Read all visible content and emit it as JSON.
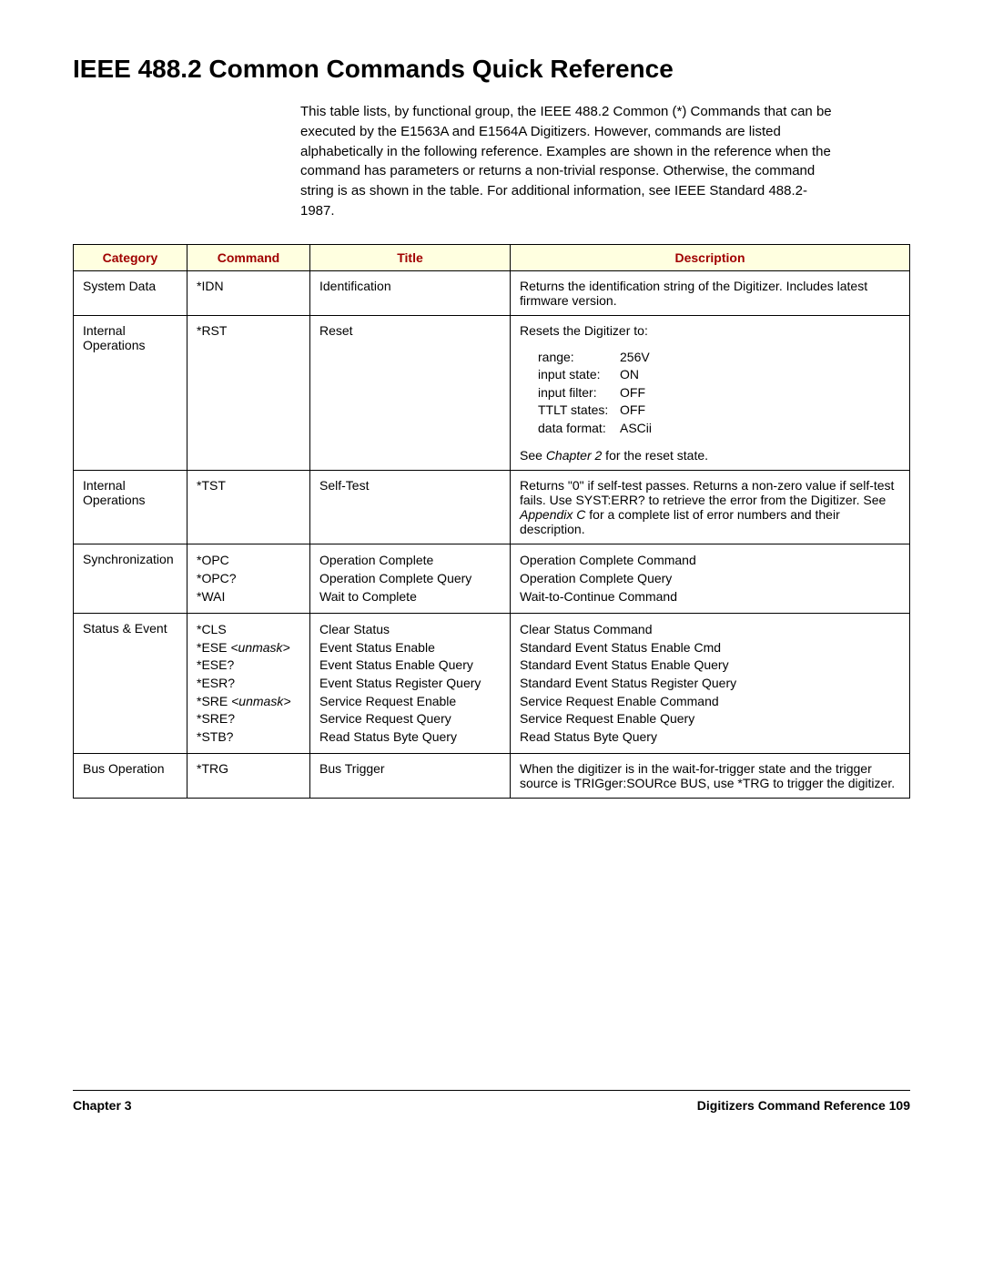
{
  "heading": "IEEE 488.2 Common Commands Quick Reference",
  "intro": "This table lists, by functional group, the IEEE 488.2 Common (*) Commands that can be executed by the E1563A and E1564A Digitizers. However, commands are listed alphabetically in the following reference. Examples are shown in the reference when the command has parameters or returns a non-trivial response. Otherwise, the command string is as shown in the table. For additional information, see IEEE Standard 488.2-1987.",
  "table": {
    "headers": [
      "Category",
      "Command",
      "Title",
      "Description"
    ],
    "rows": {
      "r1": {
        "category": "System Data",
        "command": "*IDN",
        "title": "Identification",
        "desc": "Returns the identification string of the Digitizer. Includes latest firmware version."
      },
      "r2": {
        "category": "Internal Operations",
        "command": "*RST",
        "title": "Reset",
        "desc_intro": "Resets the Digitizer to:",
        "reset": {
          "range_l": "range:",
          "range_v": "256V",
          "istate_l": "input state:",
          "istate_v": "ON",
          "ifilter_l": "input filter:",
          "ifilter_v": "OFF",
          "ttlt_l": "TTLT states:",
          "ttlt_v": "OFF",
          "dfmt_l": "data format:",
          "dfmt_v": "ASCii"
        },
        "desc_outro_a": "See ",
        "desc_outro_i": "Chapter 2",
        "desc_outro_b": " for the reset state."
      },
      "r3": {
        "category": "Internal Operations",
        "command": "*TST",
        "title": "Self-Test",
        "desc_a": "Returns \"0\" if self-test passes. Returns a non-zero value if self-test fails. Use SYST:ERR? to retrieve the error from the Digitizer.  See ",
        "desc_i": "Appendix C",
        "desc_b": " for a complete list of error numbers and their description."
      },
      "r4": {
        "category": "Synchronization",
        "cmd1": "*OPC",
        "cmd2": "*OPC?",
        "cmd3": "*WAI",
        "t1": "Operation Complete",
        "t2": "Operation Complete Query",
        "t3": "Wait to Complete",
        "d1": "Operation Complete Command",
        "d2": "Operation Complete Query",
        "d3": "Wait-to-Continue Command"
      },
      "r5": {
        "category": "Status & Event",
        "cmd1a": "*CLS",
        "cmd2a": "*ESE ",
        "cmd2b": "<unmask>",
        "cmd3a": "*ESE?",
        "cmd4a": "*ESR?",
        "cmd5a": "*SRE ",
        "cmd5b": "<unmask>",
        "cmd6a": "*SRE?",
        "cmd7a": "*STB?",
        "t1": "Clear Status",
        "t2": "Event Status Enable",
        "t3": "Event Status Enable Query",
        "t4": "Event Status Register Query",
        "t5": "Service Request Enable",
        "t6": "Service Request Query",
        "t7": "Read Status Byte Query",
        "d1": "Clear Status Command",
        "d2": "Standard Event Status Enable Cmd",
        "d3": "Standard Event Status Enable Query",
        "d4": "Standard Event Status Register Query",
        "d5": "Service Request Enable Command",
        "d6": "Service Request Enable Query",
        "d7": "Read Status Byte Query"
      },
      "r6": {
        "category": "Bus Operation",
        "command": "*TRG",
        "title": "Bus Trigger",
        "desc": "When the digitizer is in the wait-for-trigger state and the trigger source is TRIGger:SOURce  BUS, use *TRG to trigger the digitizer."
      }
    }
  },
  "footer": {
    "left": "Chapter 3",
    "right_a": "Digitizers Command Reference",
    "right_b": "   109"
  }
}
